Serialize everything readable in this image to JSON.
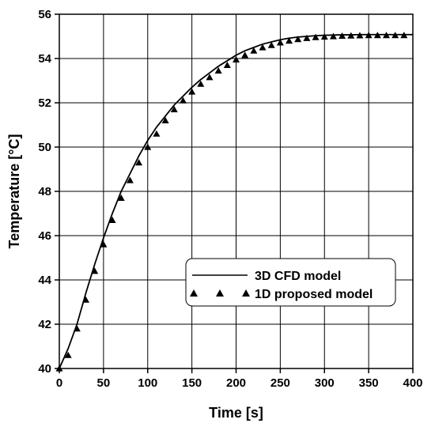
{
  "chart_data": {
    "type": "line",
    "xlabel": "Time [s]",
    "ylabel": "Temperature [°C]",
    "xlim": [
      0,
      400
    ],
    "ylim": [
      40,
      56
    ],
    "xticks": [
      0,
      50,
      100,
      150,
      200,
      250,
      300,
      350,
      400
    ],
    "yticks": [
      40,
      42,
      44,
      46,
      48,
      50,
      52,
      54,
      56
    ],
    "grid": true,
    "legend_position": "center-right",
    "series": [
      {
        "name": "3D CFD model",
        "style": "solid-line",
        "color": "#000000",
        "x": [
          0,
          10,
          20,
          30,
          40,
          50,
          60,
          70,
          80,
          90,
          100,
          110,
          120,
          130,
          140,
          150,
          160,
          170,
          180,
          190,
          200,
          210,
          220,
          230,
          240,
          250,
          260,
          270,
          280,
          290,
          300,
          310,
          320,
          330,
          340,
          350,
          360,
          370,
          380,
          390,
          400
        ],
        "y": [
          40.0,
          40.9,
          42.0,
          43.4,
          44.7,
          45.9,
          47.0,
          48.0,
          48.8,
          49.6,
          50.3,
          50.9,
          51.4,
          51.9,
          52.3,
          52.7,
          53.05,
          53.35,
          53.65,
          53.9,
          54.15,
          54.35,
          54.5,
          54.65,
          54.75,
          54.85,
          54.92,
          54.97,
          55.0,
          55.03,
          55.05,
          55.06,
          55.07,
          55.07,
          55.08,
          55.08,
          55.08,
          55.08,
          55.08,
          55.08,
          55.08
        ]
      },
      {
        "name": "1D proposed model",
        "style": "triangle-markers",
        "color": "#000000",
        "x": [
          0,
          10,
          20,
          30,
          40,
          50,
          60,
          70,
          80,
          90,
          100,
          110,
          120,
          130,
          140,
          150,
          160,
          170,
          180,
          190,
          200,
          210,
          220,
          230,
          240,
          250,
          260,
          270,
          280,
          290,
          300,
          310,
          320,
          330,
          340,
          350,
          360,
          370,
          380,
          390
        ],
        "y": [
          40.0,
          40.6,
          41.8,
          43.1,
          44.4,
          45.6,
          46.7,
          47.7,
          48.5,
          49.3,
          50.0,
          50.6,
          51.2,
          51.7,
          52.1,
          52.5,
          52.85,
          53.15,
          53.45,
          53.7,
          53.95,
          54.15,
          54.35,
          54.5,
          54.6,
          54.72,
          54.8,
          54.87,
          54.92,
          54.96,
          54.98,
          55.0,
          55.02,
          55.03,
          55.04,
          55.05,
          55.05,
          55.05,
          55.05,
          55.05
        ]
      }
    ]
  }
}
